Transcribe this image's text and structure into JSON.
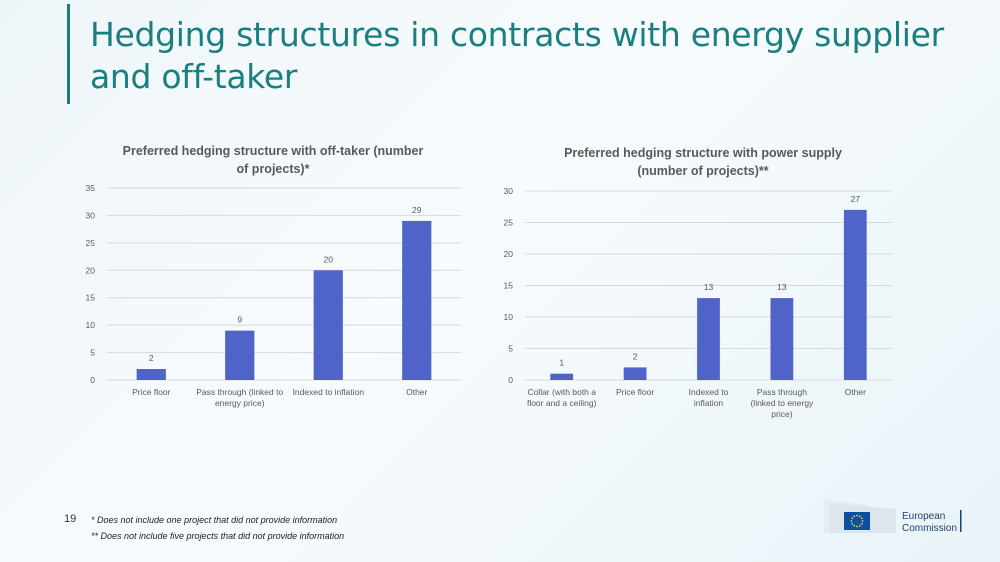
{
  "slide": {
    "title": "Hedging structures in contracts with energy supplier and off-taker",
    "page_number": "19",
    "footnotes": [
      "* Does not include one project that did not provide information",
      "** Does not include five projects that did not provide information"
    ]
  },
  "logo": {
    "line1": "European",
    "line2": "Commission",
    "flag_color": "#0e4fa1",
    "star_color": "#f6d233"
  },
  "colors": {
    "title": "#1a7f80",
    "bar": "#4f63c9",
    "grid": "#d9d9d9",
    "axis_text": "#595959"
  },
  "chart_data": [
    {
      "type": "bar",
      "title": "Preferred hedging structure with off-taker (number of projects)*",
      "title_lines": [
        "Preferred hedging structure with off-taker (number",
        "of projects)*"
      ],
      "categories": [
        [
          "Price floor"
        ],
        [
          "Pass through (linked to",
          "energy price)"
        ],
        [
          "Indexed to inflation"
        ],
        [
          "Other"
        ]
      ],
      "values": [
        2,
        9,
        20,
        29
      ],
      "ylim": [
        0,
        35
      ],
      "yticks": [
        0,
        5,
        10,
        15,
        20,
        25,
        30,
        35
      ],
      "grid": true,
      "data_labels": true
    },
    {
      "type": "bar",
      "title": "Preferred hedging structure with power supply (number of projects)**",
      "title_lines": [
        "Preferred hedging structure with  power supply",
        "(number of projects)**"
      ],
      "categories": [
        [
          "Collar (with both a",
          "floor and a ceiling)"
        ],
        [
          "Price floor"
        ],
        [
          "Indexed to",
          "inflation"
        ],
        [
          "Pass through",
          "(linked to energy",
          "price)"
        ],
        [
          "Other"
        ]
      ],
      "values": [
        1,
        2,
        13,
        13,
        27
      ],
      "ylim": [
        0,
        30
      ],
      "yticks": [
        0,
        5,
        10,
        15,
        20,
        25,
        30
      ],
      "grid": true,
      "data_labels": true
    }
  ]
}
